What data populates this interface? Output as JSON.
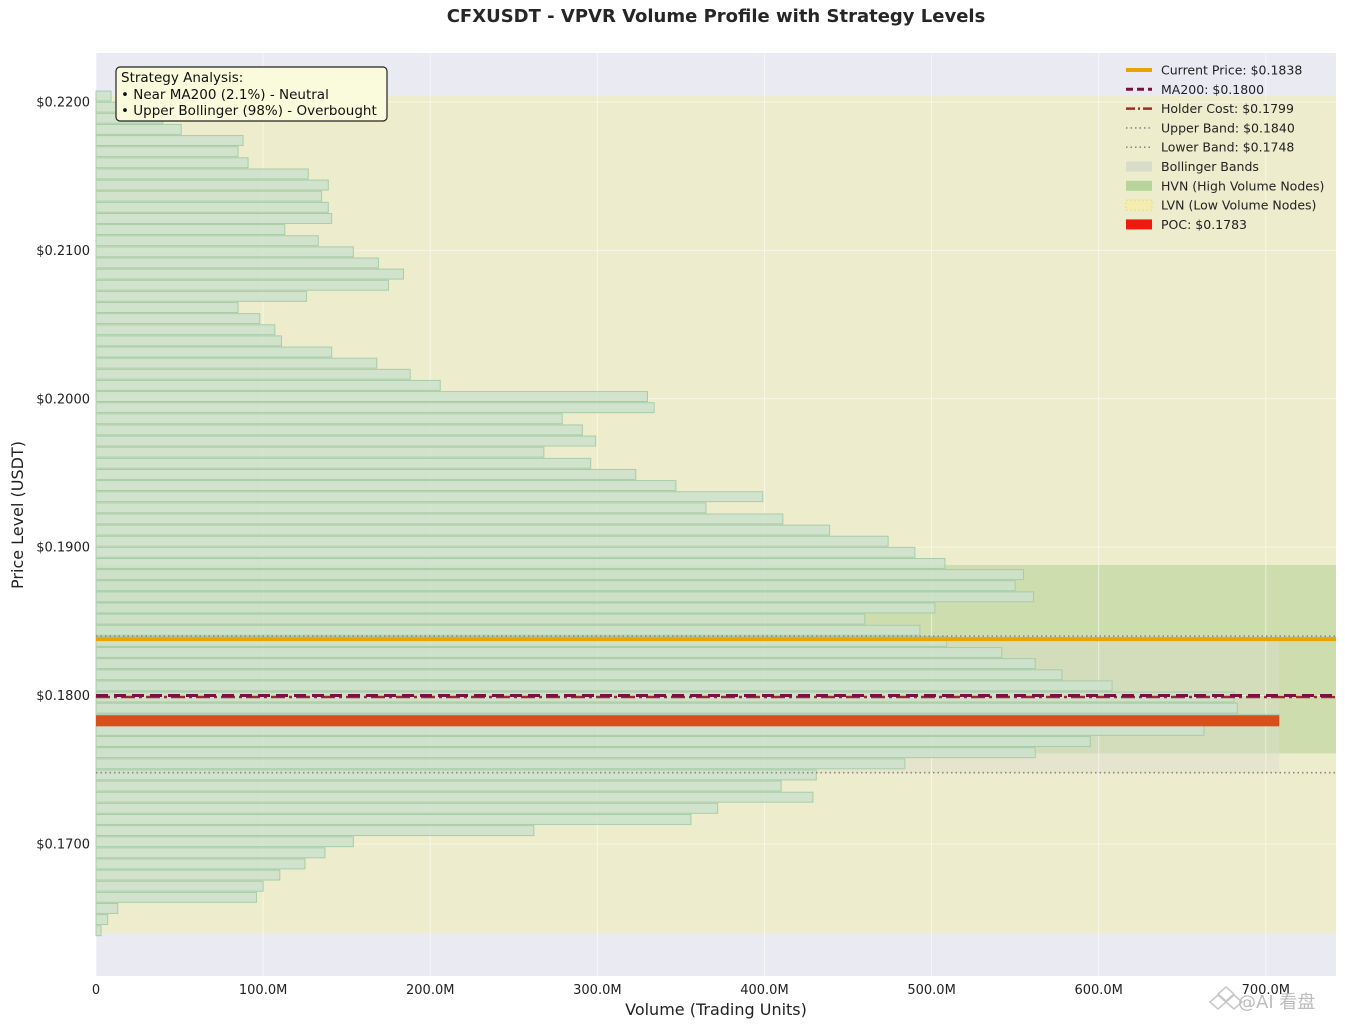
{
  "chart_data": {
    "type": "bar",
    "orientation": "horizontal",
    "title": "CFXUSDT - VPVR Volume Profile with Strategy Levels",
    "xlabel": "Volume (Trading Units)",
    "ylabel": "Price Level (USDT)",
    "xlim": [
      0,
      742000000
    ],
    "ylim": [
      0.1611,
      0.2233
    ],
    "x_ticks": [
      {
        "value": 0,
        "label": "0"
      },
      {
        "value": 100000000,
        "label": "100.0M"
      },
      {
        "value": 200000000,
        "label": "200.0M"
      },
      {
        "value": 300000000,
        "label": "300.0M"
      },
      {
        "value": 400000000,
        "label": "400.0M"
      },
      {
        "value": 500000000,
        "label": "500.0M"
      },
      {
        "value": 600000000,
        "label": "600.0M"
      },
      {
        "value": 700000000,
        "label": "700.0M"
      }
    ],
    "y_ticks": [
      {
        "value": 0.17,
        "label": "$0.1700"
      },
      {
        "value": 0.18,
        "label": "$0.1800"
      },
      {
        "value": 0.19,
        "label": "$0.1900"
      },
      {
        "value": 0.2,
        "label": "$0.2000"
      },
      {
        "value": 0.21,
        "label": "$0.2100"
      },
      {
        "value": 0.22,
        "label": "$0.2200"
      }
    ],
    "grid": true,
    "bin_height": 0.00075,
    "bins": [
      {
        "price": 0.16415,
        "volume": 3000000
      },
      {
        "price": 0.1649,
        "volume": 7000000
      },
      {
        "price": 0.16565,
        "volume": 13000000
      },
      {
        "price": 0.1664,
        "volume": 96000000
      },
      {
        "price": 0.16715,
        "volume": 100000000
      },
      {
        "price": 0.1679,
        "volume": 110000000
      },
      {
        "price": 0.16865,
        "volume": 125000000
      },
      {
        "price": 0.1694,
        "volume": 137000000
      },
      {
        "price": 0.17015,
        "volume": 154000000
      },
      {
        "price": 0.1709,
        "volume": 262000000
      },
      {
        "price": 0.17165,
        "volume": 356000000
      },
      {
        "price": 0.1724,
        "volume": 372000000
      },
      {
        "price": 0.17315,
        "volume": 429000000
      },
      {
        "price": 0.1739,
        "volume": 410000000
      },
      {
        "price": 0.17465,
        "volume": 431000000
      },
      {
        "price": 0.1754,
        "volume": 484000000
      },
      {
        "price": 0.17615,
        "volume": 562000000
      },
      {
        "price": 0.1769,
        "volume": 595000000
      },
      {
        "price": 0.17765,
        "volume": 663000000
      },
      {
        "price": 0.1784,
        "volume": 708000000
      },
      {
        "price": 0.17915,
        "volume": 683000000
      },
      {
        "price": 0.1799,
        "volume": 681000000
      },
      {
        "price": 0.18065,
        "volume": 608000000
      },
      {
        "price": 0.1814,
        "volume": 578000000
      },
      {
        "price": 0.18215,
        "volume": 562000000
      },
      {
        "price": 0.1829,
        "volume": 542000000
      },
      {
        "price": 0.18365,
        "volume": 509000000
      },
      {
        "price": 0.1844,
        "volume": 493000000
      },
      {
        "price": 0.18515,
        "volume": 460000000
      },
      {
        "price": 0.1859,
        "volume": 502000000
      },
      {
        "price": 0.18665,
        "volume": 561000000
      },
      {
        "price": 0.1874,
        "volume": 550000000
      },
      {
        "price": 0.18815,
        "volume": 555000000
      },
      {
        "price": 0.1889,
        "volume": 508000000
      },
      {
        "price": 0.18965,
        "volume": 490000000
      },
      {
        "price": 0.1904,
        "volume": 474000000
      },
      {
        "price": 0.19115,
        "volume": 439000000
      },
      {
        "price": 0.1919,
        "volume": 411000000
      },
      {
        "price": 0.19265,
        "volume": 365000000
      },
      {
        "price": 0.1934,
        "volume": 399000000
      },
      {
        "price": 0.19415,
        "volume": 347000000
      },
      {
        "price": 0.1949,
        "volume": 323000000
      },
      {
        "price": 0.19565,
        "volume": 296000000
      },
      {
        "price": 0.1964,
        "volume": 268000000
      },
      {
        "price": 0.19715,
        "volume": 299000000
      },
      {
        "price": 0.1979,
        "volume": 291000000
      },
      {
        "price": 0.19865,
        "volume": 279000000
      },
      {
        "price": 0.1994,
        "volume": 334000000
      },
      {
        "price": 0.20015,
        "volume": 330000000
      },
      {
        "price": 0.2009,
        "volume": 206000000
      },
      {
        "price": 0.20165,
        "volume": 188000000
      },
      {
        "price": 0.2024,
        "volume": 168000000
      },
      {
        "price": 0.20315,
        "volume": 141000000
      },
      {
        "price": 0.2039,
        "volume": 111000000
      },
      {
        "price": 0.20465,
        "volume": 107000000
      },
      {
        "price": 0.2054,
        "volume": 98000000
      },
      {
        "price": 0.20615,
        "volume": 85000000
      },
      {
        "price": 0.2069,
        "volume": 126000000
      },
      {
        "price": 0.20765,
        "volume": 175000000
      },
      {
        "price": 0.2084,
        "volume": 184000000
      },
      {
        "price": 0.20915,
        "volume": 169000000
      },
      {
        "price": 0.2099,
        "volume": 154000000
      },
      {
        "price": 0.21065,
        "volume": 133000000
      },
      {
        "price": 0.2114,
        "volume": 113000000
      },
      {
        "price": 0.21215,
        "volume": 141000000
      },
      {
        "price": 0.2129,
        "volume": 139000000
      },
      {
        "price": 0.21365,
        "volume": 135000000
      },
      {
        "price": 0.2144,
        "volume": 139000000
      },
      {
        "price": 0.21515,
        "volume": 127000000
      },
      {
        "price": 0.2159,
        "volume": 91000000
      },
      {
        "price": 0.21665,
        "volume": 85000000
      },
      {
        "price": 0.2174,
        "volume": 88000000
      },
      {
        "price": 0.21815,
        "volume": 51000000
      },
      {
        "price": 0.2189,
        "volume": 40000000
      },
      {
        "price": 0.21965,
        "volume": 17000000
      },
      {
        "price": 0.2204,
        "volume": 9000000
      }
    ],
    "zones": {
      "lvn": {
        "from": 0.164,
        "to": 0.2204
      },
      "hvn": {
        "from": 0.1761,
        "to": 0.1888
      },
      "bollinger": {
        "from": 0.1748,
        "to": 0.184,
        "max_volume": 708000000
      }
    },
    "levels": {
      "current_price": 0.1838,
      "ma200": 0.18,
      "holder_cost": 0.1799,
      "upper_band": 0.184,
      "lower_band": 0.1748,
      "poc": 0.1783
    },
    "legend_position": "top-right",
    "legend": [
      {
        "key": "current_price",
        "label": "Current Price: $0.1838",
        "style": "solid-thick",
        "color": "#E8A400"
      },
      {
        "key": "ma200",
        "label": "MA200: $0.1800",
        "style": "dashed",
        "color": "#7B1041"
      },
      {
        "key": "holder_cost",
        "label": "Holder Cost: $0.1799",
        "style": "dashdot",
        "color": "#A3282E"
      },
      {
        "key": "upper_band",
        "label": "Upper Band: $0.1840",
        "style": "dotted",
        "color": "#8A8A8A"
      },
      {
        "key": "lower_band",
        "label": "Lower Band: $0.1748",
        "style": "dotted",
        "color": "#8A8A8A"
      },
      {
        "key": "bollinger",
        "label": "Bollinger Bands",
        "style": "patch",
        "color": "#D8DCC8"
      },
      {
        "key": "hvn",
        "label": "HVN (High Volume Nodes)",
        "style": "patch",
        "color": "#B7D49A"
      },
      {
        "key": "lvn",
        "label": "LVN (Low Volume Nodes)",
        "style": "patch",
        "color": "#F4EDB0"
      },
      {
        "key": "poc",
        "label": "POC: $0.1783",
        "style": "patch",
        "color": "#EE1A0E"
      }
    ],
    "annotation": {
      "position": "top-left",
      "lines": [
        "Strategy Analysis:",
        "• Near MA200 (2.1%) - Neutral",
        "• Upper Bollinger (98%) - Overbought"
      ]
    },
    "colors": {
      "plot_bg": "#EAEAF2",
      "bar_fill": "#CDE2CD",
      "bar_edge": "#A8CCA8",
      "lvn_fill": "#EDECCC",
      "hvn_fill": "#B7D49A",
      "bollinger_fill": "#DCDCCB",
      "poc": "#D94F1C",
      "current_price": "#E8A400",
      "ma200": "#7B1041",
      "holder_cost": "#A3282E",
      "band": "#8A8A8A",
      "annotation_bg": "#FAFADC"
    }
  },
  "watermark": "@AI 看盘"
}
